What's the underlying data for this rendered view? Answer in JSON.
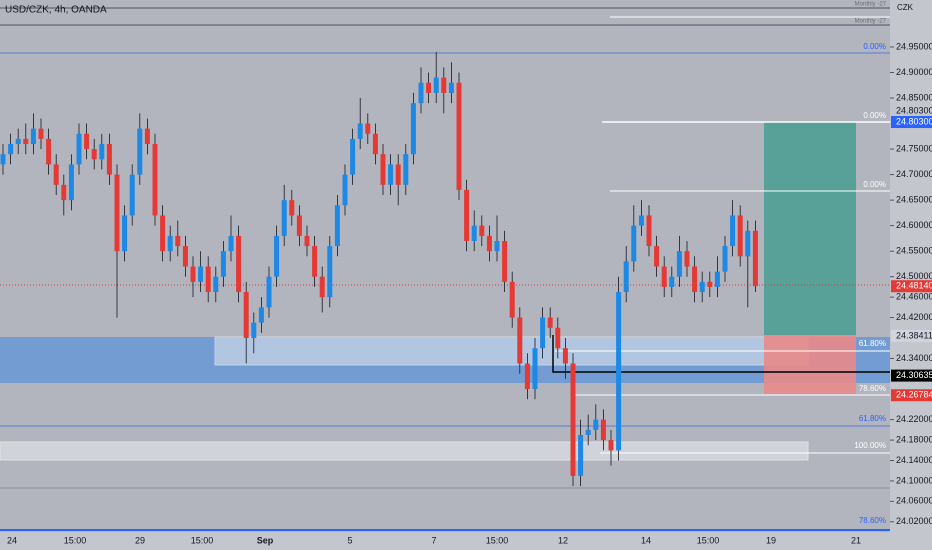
{
  "chart_data": {
    "type": "candlestick",
    "title": "USD/CZK, 4h, OANDA",
    "currency": "CZK",
    "notes": [
      "Monthly -27",
      "Monthly -27"
    ],
    "up_color": "#1e88e5",
    "down_color": "#e53935",
    "ylim": [
      24.0,
      25.042
    ],
    "yticks": [
      {
        "value": 24.95,
        "label": "24.95000"
      },
      {
        "value": 24.9,
        "label": "24.90000"
      },
      {
        "value": 24.85,
        "label": "24.85000"
      },
      {
        "value": 24.75,
        "label": "24.75000"
      },
      {
        "value": 24.7,
        "label": "24.70000"
      },
      {
        "value": 24.65,
        "label": "24.65000"
      },
      {
        "value": 24.6,
        "label": "24.60000"
      },
      {
        "value": 24.55,
        "label": "24.55000"
      },
      {
        "value": 24.5,
        "label": "24.50000"
      },
      {
        "value": 24.46,
        "label": "24.46000"
      },
      {
        "value": 24.42,
        "label": "24.42000"
      },
      {
        "value": 24.34,
        "label": "24.34000"
      },
      {
        "value": 24.22,
        "label": "24.22000"
      },
      {
        "value": 24.18,
        "label": "24.18000"
      },
      {
        "value": 24.14,
        "label": "24.14000"
      },
      {
        "value": 24.1,
        "label": "24.10000"
      },
      {
        "value": 24.06,
        "label": "24.06000"
      },
      {
        "value": 24.02,
        "label": "24.02000"
      }
    ],
    "price_labels": [
      {
        "value": 24.803,
        "label": "24.80300"
      },
      {
        "value": 24.4814,
        "label": "24.48140"
      },
      {
        "value": 24.38411,
        "label": "24.38411"
      },
      {
        "value": 24.30635,
        "label": "24.30635"
      },
      {
        "value": 24.26784,
        "label": "24.26784"
      }
    ],
    "price_label_colors": [
      "#2962ff",
      "#e53935",
      "#d1d4dc",
      "#000000",
      "#e53935"
    ],
    "price_label_text_colors": [
      "#ffffff",
      "#ffffff",
      "#131722",
      "#ffffff",
      "#ffffff"
    ],
    "marker_label": "24.80300",
    "x_labels": [
      "24",
      "15:00",
      "29",
      "15:00",
      "Sep",
      "5",
      "7",
      "15:00",
      "12",
      "14",
      "15:00",
      "19",
      "21"
    ],
    "fib_labels": [
      "0.00%",
      "0.00%",
      "0.00%",
      "61.80%",
      "78.60%",
      "61.80%",
      "100.00%",
      "78.60%"
    ],
    "candles": [
      [
        24.72,
        24.76,
        24.7,
        24.74
      ],
      [
        24.74,
        24.78,
        24.72,
        24.76
      ],
      [
        24.76,
        24.79,
        24.74,
        24.77
      ],
      [
        24.77,
        24.8,
        24.74,
        24.76
      ],
      [
        24.76,
        24.82,
        24.74,
        24.79
      ],
      [
        24.79,
        24.81,
        24.75,
        24.77
      ],
      [
        24.77,
        24.79,
        24.7,
        24.72
      ],
      [
        24.72,
        24.74,
        24.66,
        24.68
      ],
      [
        24.68,
        24.7,
        24.62,
        24.65
      ],
      [
        24.65,
        24.74,
        24.63,
        24.72
      ],
      [
        24.72,
        24.8,
        24.7,
        24.78
      ],
      [
        24.78,
        24.8,
        24.73,
        24.75
      ],
      [
        24.75,
        24.77,
        24.71,
        24.73
      ],
      [
        24.73,
        24.78,
        24.71,
        24.76
      ],
      [
        24.76,
        24.78,
        24.68,
        24.7
      ],
      [
        24.7,
        24.72,
        24.42,
        24.55
      ],
      [
        24.55,
        24.64,
        24.53,
        24.62
      ],
      [
        24.62,
        24.72,
        24.6,
        24.7
      ],
      [
        24.7,
        24.82,
        24.68,
        24.79
      ],
      [
        24.79,
        24.81,
        24.74,
        24.76
      ],
      [
        24.76,
        24.78,
        24.6,
        24.62
      ],
      [
        24.62,
        24.64,
        24.53,
        24.55
      ],
      [
        24.55,
        24.6,
        24.53,
        24.58
      ],
      [
        24.58,
        24.61,
        24.54,
        24.56
      ],
      [
        24.56,
        24.58,
        24.5,
        24.52
      ],
      [
        24.52,
        24.54,
        24.46,
        24.49
      ],
      [
        24.49,
        24.55,
        24.47,
        24.52
      ],
      [
        24.52,
        24.54,
        24.45,
        24.47
      ],
      [
        24.47,
        24.52,
        24.45,
        24.5
      ],
      [
        24.5,
        24.57,
        24.48,
        24.55
      ],
      [
        24.55,
        24.62,
        24.53,
        24.58
      ],
      [
        24.58,
        24.6,
        24.45,
        24.47
      ],
      [
        24.47,
        24.49,
        24.33,
        24.38
      ],
      [
        24.38,
        24.43,
        24.35,
        24.41
      ],
      [
        24.41,
        24.46,
        24.39,
        24.44
      ],
      [
        24.44,
        24.52,
        24.42,
        24.5
      ],
      [
        24.5,
        24.6,
        24.48,
        24.58
      ],
      [
        24.58,
        24.68,
        24.56,
        24.65
      ],
      [
        24.65,
        24.67,
        24.6,
        24.62
      ],
      [
        24.62,
        24.64,
        24.56,
        24.58
      ],
      [
        24.58,
        24.6,
        24.54,
        24.56
      ],
      [
        24.56,
        24.58,
        24.48,
        24.5
      ],
      [
        24.5,
        24.52,
        24.43,
        24.46
      ],
      [
        24.46,
        24.58,
        24.44,
        24.56
      ],
      [
        24.56,
        24.66,
        24.54,
        24.64
      ],
      [
        24.64,
        24.72,
        24.62,
        24.7
      ],
      [
        24.7,
        24.79,
        24.68,
        24.77
      ],
      [
        24.77,
        24.85,
        24.75,
        24.8
      ],
      [
        24.8,
        24.82,
        24.76,
        24.78
      ],
      [
        24.78,
        24.8,
        24.72,
        24.74
      ],
      [
        24.74,
        24.76,
        24.66,
        24.68
      ],
      [
        24.68,
        24.74,
        24.66,
        24.72
      ],
      [
        24.72,
        24.74,
        24.64,
        24.68
      ],
      [
        24.68,
        24.76,
        24.66,
        24.74
      ],
      [
        24.74,
        24.86,
        24.72,
        24.84
      ],
      [
        24.84,
        24.91,
        24.82,
        24.88
      ],
      [
        24.88,
        24.9,
        24.84,
        24.86
      ],
      [
        24.86,
        24.94,
        24.84,
        24.89
      ],
      [
        24.89,
        24.91,
        24.82,
        24.86
      ],
      [
        24.86,
        24.92,
        24.84,
        24.88
      ],
      [
        24.88,
        24.9,
        24.65,
        24.67
      ],
      [
        24.67,
        24.69,
        24.55,
        24.57
      ],
      [
        24.57,
        24.63,
        24.55,
        24.6
      ],
      [
        24.6,
        24.62,
        24.56,
        24.58
      ],
      [
        24.58,
        24.6,
        24.53,
        24.55
      ],
      [
        24.55,
        24.62,
        24.53,
        24.57
      ],
      [
        24.57,
        24.59,
        24.47,
        24.49
      ],
      [
        24.49,
        24.51,
        24.4,
        24.42
      ],
      [
        24.42,
        24.44,
        24.31,
        24.33
      ],
      [
        24.33,
        24.35,
        24.26,
        24.28
      ],
      [
        24.28,
        24.38,
        24.26,
        24.36
      ],
      [
        24.36,
        24.44,
        24.34,
        24.42
      ],
      [
        24.42,
        24.44,
        24.38,
        24.4
      ],
      [
        24.4,
        24.42,
        24.34,
        24.36
      ],
      [
        24.36,
        24.38,
        24.3,
        24.33
      ],
      [
        24.33,
        24.35,
        24.09,
        24.11
      ],
      [
        24.11,
        24.22,
        24.09,
        24.19
      ],
      [
        24.19,
        24.23,
        24.17,
        24.2
      ],
      [
        24.2,
        24.25,
        24.18,
        24.22
      ],
      [
        24.22,
        24.24,
        24.16,
        24.18
      ],
      [
        24.18,
        24.2,
        24.13,
        24.16
      ],
      [
        24.16,
        24.5,
        24.14,
        24.47
      ],
      [
        24.47,
        24.56,
        24.45,
        24.53
      ],
      [
        24.53,
        24.64,
        24.51,
        24.6
      ],
      [
        24.6,
        24.65,
        24.58,
        24.62
      ],
      [
        24.62,
        24.64,
        24.54,
        24.56
      ],
      [
        24.56,
        24.58,
        24.5,
        24.52
      ],
      [
        24.52,
        24.54,
        24.46,
        24.48
      ],
      [
        24.48,
        24.52,
        24.46,
        24.5
      ],
      [
        24.5,
        24.58,
        24.48,
        24.55
      ],
      [
        24.55,
        24.57,
        24.5,
        24.52
      ],
      [
        24.52,
        24.54,
        24.45,
        24.47
      ],
      [
        24.47,
        24.51,
        24.45,
        24.49
      ],
      [
        24.49,
        24.51,
        24.46,
        24.48
      ],
      [
        24.48,
        24.54,
        24.46,
        24.51
      ],
      [
        24.51,
        24.58,
        24.49,
        24.56
      ],
      [
        24.56,
        24.65,
        24.54,
        24.62
      ],
      [
        24.62,
        24.64,
        24.52,
        24.54
      ],
      [
        24.54,
        24.61,
        24.44,
        24.59
      ],
      [
        24.59,
        24.61,
        24.47,
        24.4814
      ]
    ]
  }
}
